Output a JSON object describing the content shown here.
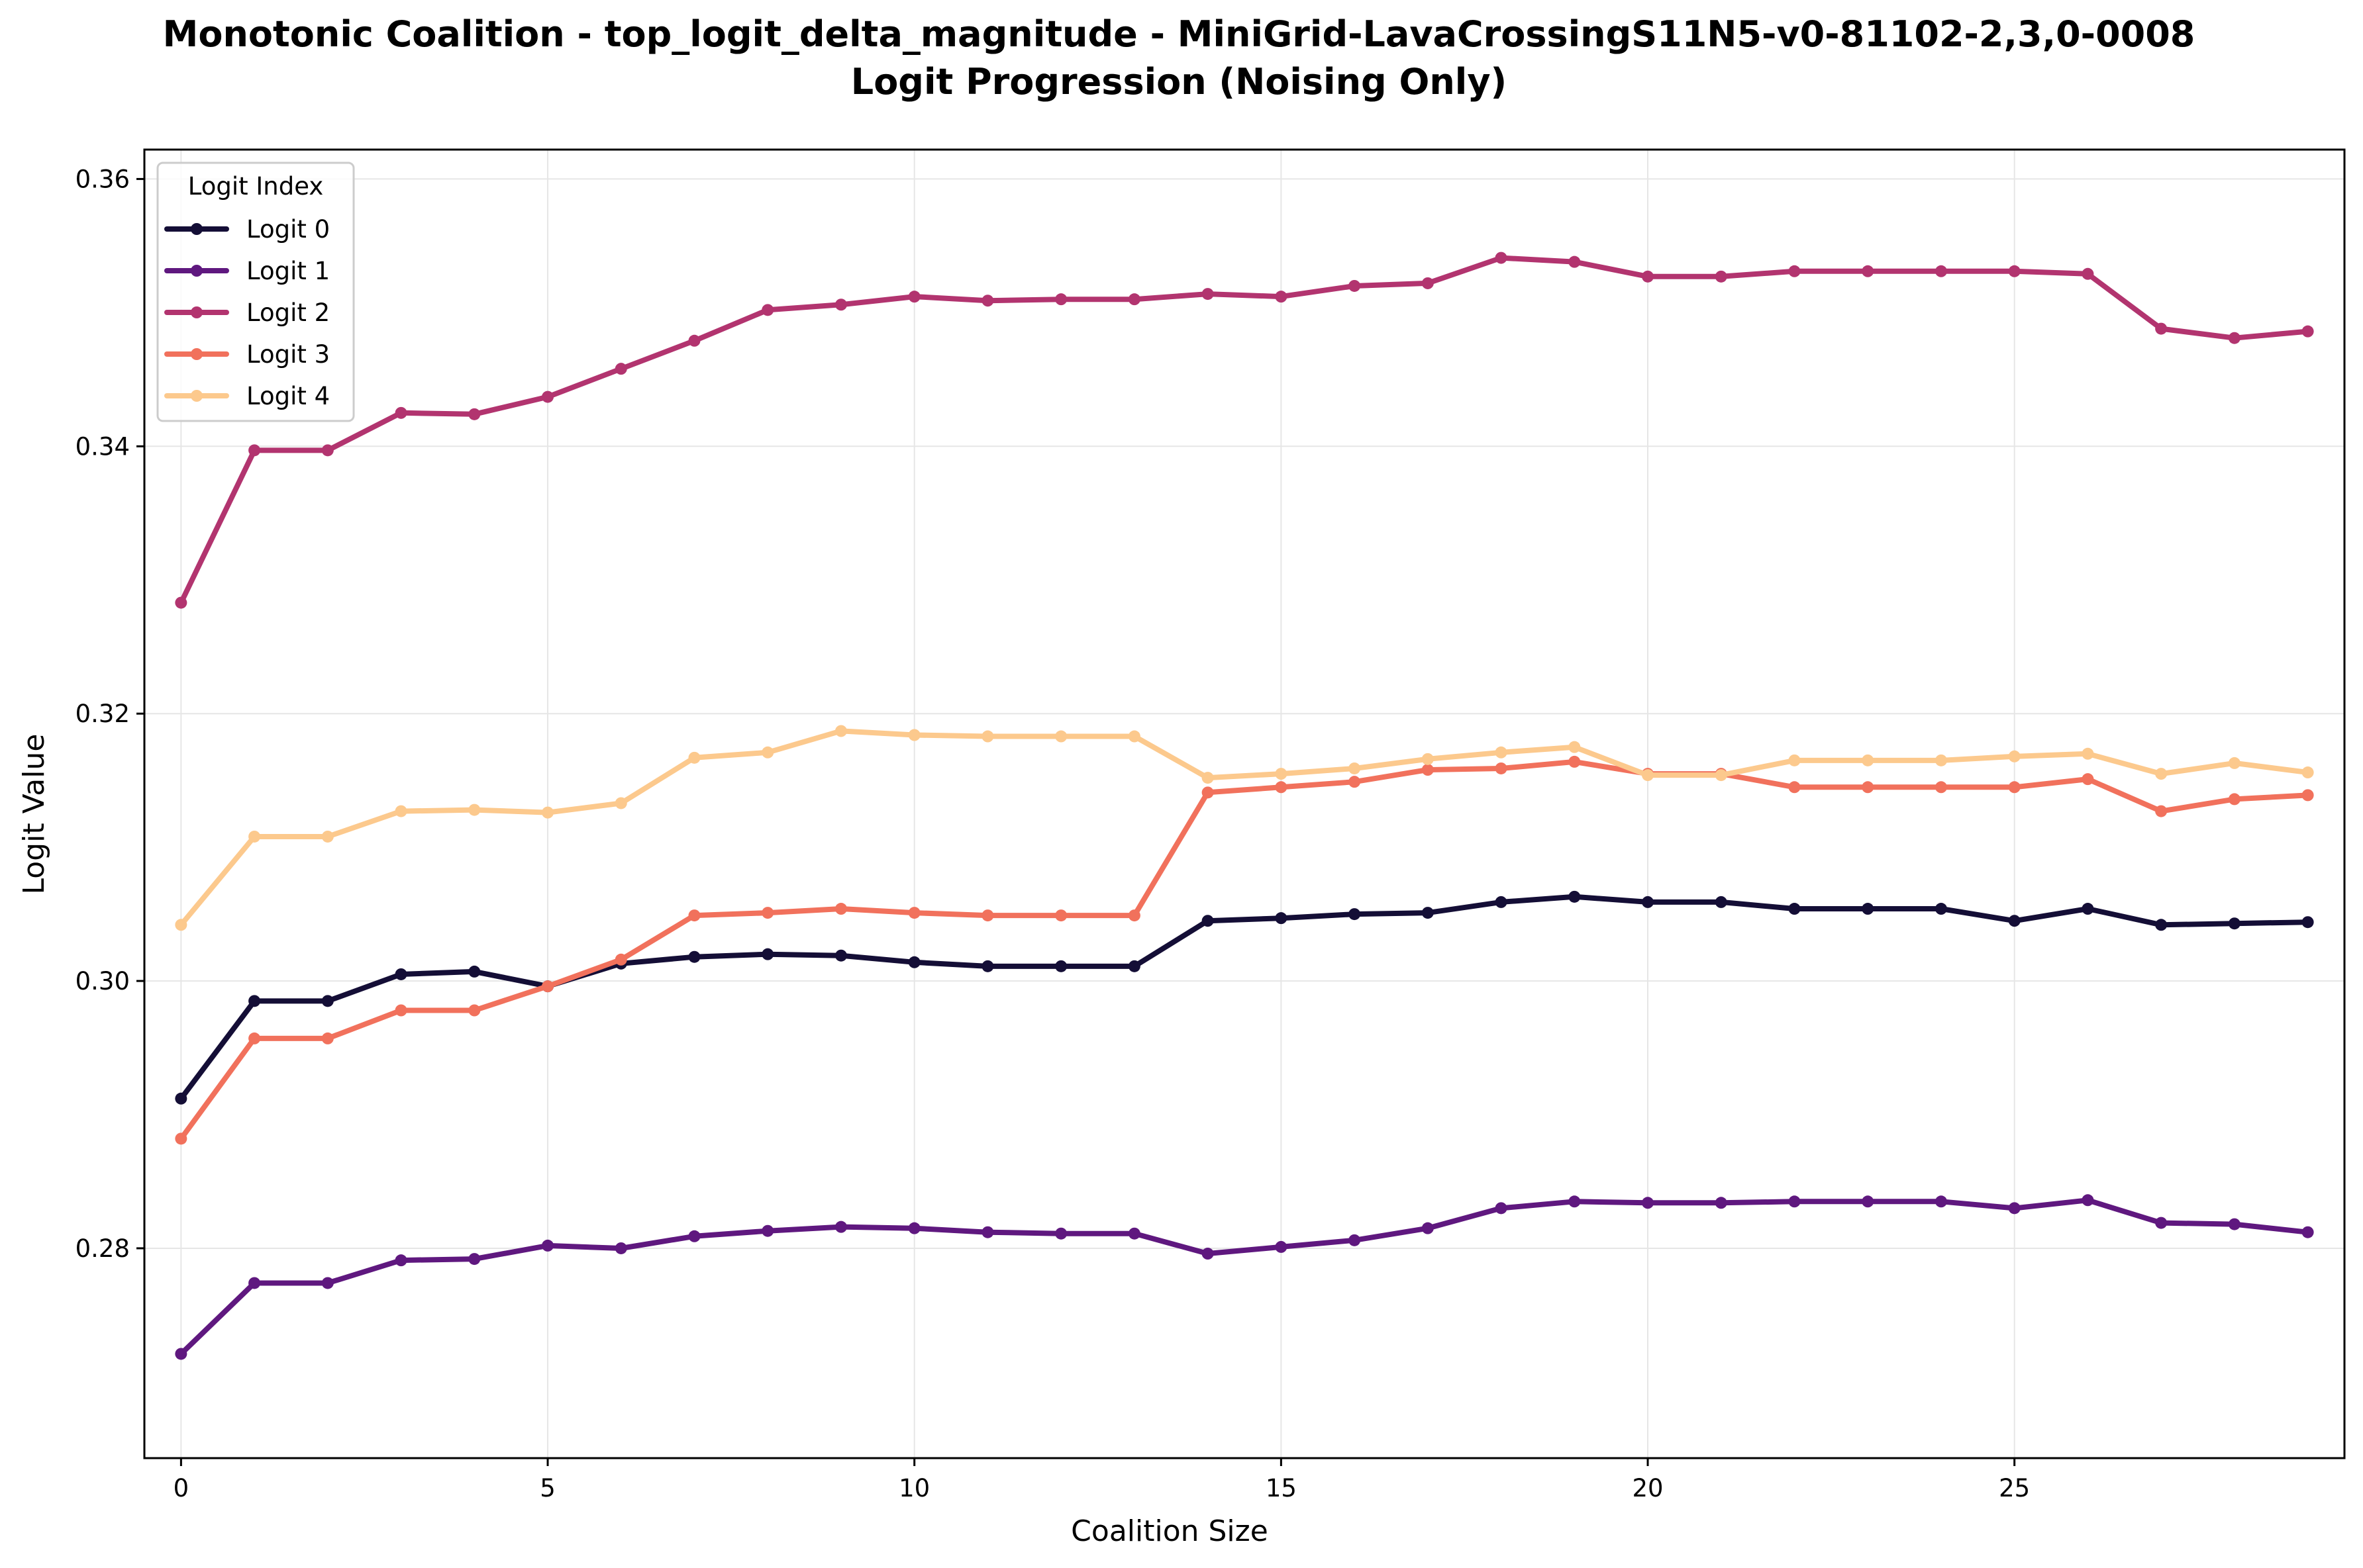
{
  "chart_data": {
    "type": "line",
    "title_line1": "Monotonic Coalition - top_logit_delta_magnitude - MiniGrid-LavaCrossingS11N5-v0-81102-2,3,0-0008",
    "title_line2": "Logit Progression (Noising Only)",
    "xlabel": "Coalition Size",
    "ylabel": "Logit Value",
    "xlim": [
      -0.5,
      29.5
    ],
    "ylim": [
      0.2643,
      0.3622
    ],
    "xticks": [
      0,
      5,
      10,
      15,
      20,
      25
    ],
    "yticks": [
      0.28,
      0.3,
      0.32,
      0.34,
      0.36
    ],
    "ytick_labels": [
      "0.28",
      "0.30",
      "0.32",
      "0.34",
      "0.36"
    ],
    "grid": true,
    "legend": {
      "title": "Logit Index",
      "placement": "top-left"
    },
    "x": [
      0,
      1,
      2,
      3,
      4,
      5,
      6,
      7,
      8,
      9,
      10,
      11,
      12,
      13,
      14,
      15,
      16,
      17,
      18,
      19,
      20,
      21,
      22,
      23,
      24,
      25,
      26,
      27,
      28,
      29
    ],
    "series": [
      {
        "name": "Logit 0",
        "color": "#140e36",
        "values": [
          0.2912,
          0.2985,
          0.2985,
          0.3005,
          0.3007,
          0.2996,
          0.3013,
          0.3018,
          0.302,
          0.3019,
          0.3014,
          0.3011,
          0.3011,
          0.3011,
          0.3045,
          0.3047,
          0.305,
          0.3051,
          0.3059,
          0.3063,
          0.3059,
          0.3059,
          0.3054,
          0.3054,
          0.3054,
          0.3045,
          0.3054,
          0.3042,
          0.3043,
          0.3044
        ]
      },
      {
        "name": "Logit 1",
        "color": "#5f187f",
        "values": [
          0.2721,
          0.2774,
          0.2774,
          0.2791,
          0.2792,
          0.2802,
          0.28,
          0.2809,
          0.2813,
          0.2816,
          0.2815,
          0.2812,
          0.2811,
          0.2811,
          0.2796,
          0.2801,
          0.2806,
          0.2815,
          0.283,
          0.2835,
          0.2834,
          0.2834,
          0.2835,
          0.2835,
          0.2835,
          0.283,
          0.2836,
          0.2819,
          0.2818,
          0.2812
        ]
      },
      {
        "name": "Logit 2",
        "color": "#b2346f",
        "values": [
          0.3283,
          0.3397,
          0.3397,
          0.3425,
          0.3424,
          0.3437,
          0.3458,
          0.3479,
          0.3502,
          0.3506,
          0.3512,
          0.3509,
          0.351,
          0.351,
          0.3514,
          0.3512,
          0.352,
          0.3522,
          0.3541,
          0.3538,
          0.3527,
          0.3527,
          0.3531,
          0.3531,
          0.3531,
          0.3531,
          0.3529,
          0.3488,
          0.3481,
          0.3486
        ]
      },
      {
        "name": "Logit 3",
        "color": "#f1715c",
        "values": [
          0.2882,
          0.2957,
          0.2957,
          0.2978,
          0.2978,
          0.2996,
          0.3016,
          0.3049,
          0.3051,
          0.3054,
          0.3051,
          0.3049,
          0.3049,
          0.3049,
          0.3141,
          0.3145,
          0.3149,
          0.3158,
          0.3159,
          0.3164,
          0.3155,
          0.3155,
          0.3145,
          0.3145,
          0.3145,
          0.3145,
          0.3151,
          0.3127,
          0.3136,
          0.3139
        ]
      },
      {
        "name": "Logit 4",
        "color": "#fcc98d",
        "values": [
          0.3042,
          0.3108,
          0.3108,
          0.3127,
          0.3128,
          0.3126,
          0.3133,
          0.3167,
          0.3171,
          0.3187,
          0.3184,
          0.3183,
          0.3183,
          0.3183,
          0.3152,
          0.3155,
          0.3159,
          0.3166,
          0.3171,
          0.3175,
          0.3154,
          0.3154,
          0.3165,
          0.3165,
          0.3165,
          0.3168,
          0.317,
          0.3155,
          0.3163,
          0.3156
        ]
      }
    ]
  }
}
